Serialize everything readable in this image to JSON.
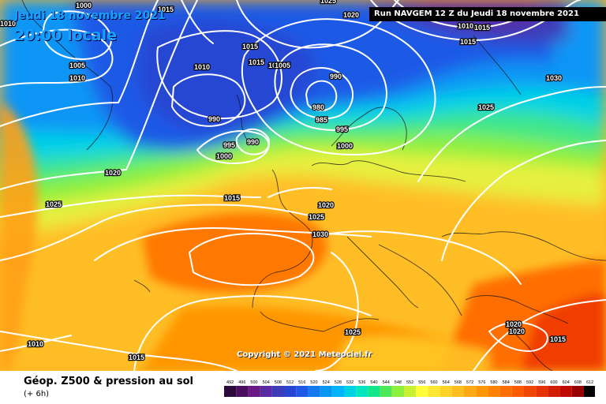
{
  "header": {
    "date": "Jeudi 18 novembre 2021",
    "time": "20:00 locale",
    "run": "Run NAVGEM 12 Z du Jeudi 18 novembre 2021"
  },
  "copyright": "Copyright © 2021 Meteociel.fr",
  "footer": {
    "title": "Géop. Z500 & pression au sol",
    "subtitle": "(+ 6h)"
  },
  "legend": {
    "values": [
      "492",
      "496",
      "500",
      "504",
      "508",
      "512",
      "516",
      "520",
      "524",
      "528",
      "532",
      "536",
      "540",
      "544",
      "548",
      "552",
      "556",
      "560",
      "564",
      "568",
      "572",
      "576",
      "580",
      "584",
      "588",
      "592",
      "596",
      "600",
      "604",
      "608",
      "612"
    ],
    "colors": [
      "#2d0a3c",
      "#4b0f62",
      "#6a1a86",
      "#5a2aa0",
      "#3c3cb8",
      "#2846d2",
      "#1e5ae6",
      "#1478f0",
      "#0a96f5",
      "#00b4ff",
      "#00d2e6",
      "#00e6be",
      "#14e68c",
      "#50e65a",
      "#8cf03c",
      "#c8f032",
      "#ffff3c",
      "#ffe632",
      "#ffd228",
      "#ffbe1e",
      "#ffaa14",
      "#ff960a",
      "#ff8200",
      "#ff6e00",
      "#ff5a00",
      "#f04600",
      "#e63200",
      "#d21e00",
      "#be0a00",
      "#960000",
      "#000000"
    ]
  },
  "isobar_labels": [
    {
      "text": "1000",
      "slot": "a"
    },
    {
      "text": "1015",
      "slot": "b"
    },
    {
      "text": "1025",
      "slot": "c"
    },
    {
      "text": "1020",
      "slot": "d"
    },
    {
      "text": "1010",
      "slot": "e"
    },
    {
      "text": "1015",
      "slot": "f"
    },
    {
      "text": "1010",
      "slot": "g"
    },
    {
      "text": "1005",
      "slot": "h"
    },
    {
      "text": "1010",
      "slot": "i"
    },
    {
      "text": "1010",
      "slot": "j"
    },
    {
      "text": "1015",
      "slot": "k"
    },
    {
      "text": "1015",
      "slot": "l"
    },
    {
      "text": "1010",
      "slot": "m"
    },
    {
      "text": "1005",
      "slot": "n"
    },
    {
      "text": "990",
      "slot": "o"
    },
    {
      "text": "980",
      "slot": "p"
    },
    {
      "text": "985",
      "slot": "q"
    },
    {
      "text": "995",
      "slot": "r"
    },
    {
      "text": "1000",
      "slot": "s"
    },
    {
      "text": "990",
      "slot": "t"
    },
    {
      "text": "995",
      "slot": "u"
    },
    {
      "text": "990",
      "slot": "v"
    },
    {
      "text": "1000",
      "slot": "w"
    },
    {
      "text": "1030",
      "slot": "x"
    },
    {
      "text": "1025",
      "slot": "y"
    },
    {
      "text": "1020",
      "slot": "z"
    },
    {
      "text": "1025",
      "slot": "aa"
    },
    {
      "text": "1015",
      "slot": "ab"
    },
    {
      "text": "1020",
      "slot": "ac"
    },
    {
      "text": "1025",
      "slot": "ad"
    },
    {
      "text": "1030",
      "slot": "ae"
    },
    {
      "text": "1025",
      "slot": "af"
    },
    {
      "text": "1020",
      "slot": "ag"
    },
    {
      "text": "1020",
      "slot": "ah"
    },
    {
      "text": "1015",
      "slot": "ai"
    },
    {
      "text": "1010",
      "slot": "aj"
    },
    {
      "text": "1015",
      "slot": "ak"
    },
    {
      "text": "1015",
      "slot": "al"
    }
  ]
}
